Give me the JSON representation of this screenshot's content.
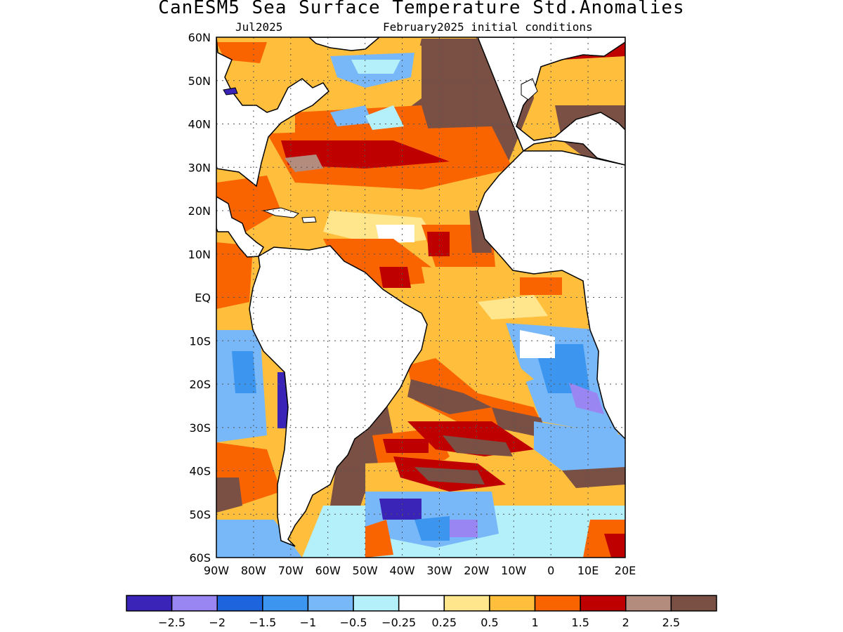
{
  "title": "CanESM5 Sea Surface Temperature Std.Anomalies",
  "subtitle_left": "Jul2025",
  "subtitle_right": "February2025 initial conditions",
  "map": {
    "lat_range": [
      -60,
      60
    ],
    "lon_range": [
      -90,
      20
    ],
    "lat_ticks": [
      "60N",
      "50N",
      "40N",
      "30N",
      "20N",
      "10N",
      "EQ",
      "10S",
      "20S",
      "30S",
      "40S",
      "50S",
      "60S"
    ],
    "lon_ticks": [
      "90W",
      "80W",
      "70W",
      "60W",
      "50W",
      "40W",
      "30W",
      "20W",
      "10W",
      "0",
      "10E",
      "20E"
    ],
    "grid": "dotted"
  },
  "colorbar": {
    "colors": [
      "#3a24b8",
      "#9a86f2",
      "#1e64dc",
      "#3c96f0",
      "#78b8f8",
      "#b4f0fa",
      "#ffffff",
      "#ffe68c",
      "#ffbe3c",
      "#fa6400",
      "#be0000",
      "#b48c7e",
      "#7a5044"
    ],
    "labels": [
      "−2.5",
      "−2",
      "−1.5",
      "−1",
      "−0.5",
      "−0.25",
      "0.25",
      "0.5",
      "1",
      "1.5",
      "2",
      "2.5"
    ]
  }
}
